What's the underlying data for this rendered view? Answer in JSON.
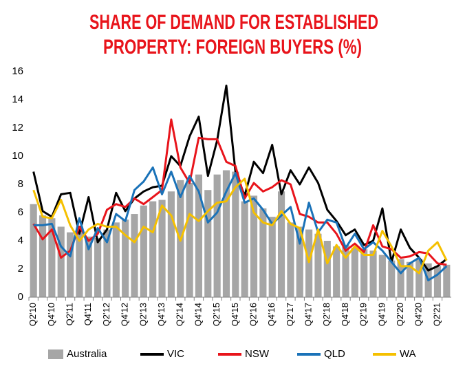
{
  "chart_data": {
    "type": "line",
    "title": [
      "SHARE OF DEMAND FOR ESTABLISHED",
      "PROPERTY: FOREIGN BUYERS (%)"
    ],
    "categories": [
      "Q2'10",
      null,
      "Q4'10",
      null,
      "Q2'11",
      null,
      "Q4'11",
      null,
      "Q2'12",
      null,
      "Q4'12",
      null,
      "Q2'13",
      null,
      "Q4'13",
      null,
      "Q2'14",
      null,
      "Q4'14",
      null,
      "Q2'15",
      null,
      "Q4'15",
      null,
      "Q2'16",
      null,
      "Q4'16",
      null,
      "Q2'17",
      null,
      "Q4'17",
      null,
      "Q2'18",
      null,
      "Q4'18",
      null,
      "Q2'19",
      null,
      "Q4'19",
      null,
      "Q2'20",
      null,
      "Q4'20",
      null,
      "Q2'21",
      null
    ],
    "series": [
      {
        "name": "Australia",
        "type": "bar",
        "color": "#a6a6a6",
        "values": [
          6.6,
          5.8,
          5.6,
          5.0,
          4.6,
          4.7,
          4.3,
          4.2,
          4.8,
          5.3,
          5.5,
          5.9,
          6.5,
          6.8,
          6.9,
          7.5,
          8.3,
          8.1,
          8.7,
          7.6,
          8.7,
          9.0,
          8.9,
          6.8,
          7.2,
          6.3,
          5.7,
          7.5,
          5.3,
          5.0,
          4.8,
          4.5,
          4.0,
          3.6,
          3.7,
          3.5,
          3.4,
          3.3,
          3.0,
          2.6,
          2.7,
          2.5,
          2.7,
          2.4,
          2.2,
          2.3
        ]
      },
      {
        "name": "VIC",
        "type": "line",
        "color": "#000000",
        "values": [
          8.9,
          6.1,
          5.7,
          7.3,
          7.4,
          4.5,
          7.1,
          3.9,
          4.8,
          7.4,
          6.1,
          7.0,
          7.5,
          7.8,
          7.9,
          10.0,
          9.3,
          11.4,
          12.8,
          8.6,
          11.1,
          15.0,
          8.9,
          7.2,
          9.6,
          8.8,
          10.8,
          7.3,
          9.0,
          8.0,
          9.2,
          8.1,
          6.2,
          5.4,
          4.4,
          4.8,
          3.7,
          4.0,
          6.3,
          2.5,
          4.8,
          3.5,
          2.8,
          1.9,
          2.2,
          2.7
        ]
      },
      {
        "name": "NSW",
        "type": "line",
        "color": "#e8141b",
        "values": [
          5.2,
          4.1,
          4.8,
          2.8,
          3.3,
          5.0,
          4.0,
          4.5,
          6.2,
          6.6,
          6.4,
          7.0,
          6.6,
          7.1,
          7.6,
          12.6,
          9.2,
          8.1,
          11.3,
          11.2,
          11.2,
          9.6,
          9.3,
          7.0,
          8.1,
          7.5,
          7.8,
          8.3,
          8.0,
          5.9,
          5.7,
          5.3,
          5.3,
          4.5,
          3.3,
          3.8,
          3.2,
          5.1,
          3.6,
          3.4,
          2.8,
          2.9,
          3.2,
          3.1,
          2.4,
          2.3
        ]
      },
      {
        "name": "QLD",
        "type": "line",
        "color": "#1a72b8",
        "values": [
          5.1,
          5.1,
          5.2,
          3.6,
          2.9,
          5.6,
          3.4,
          4.9,
          3.9,
          5.9,
          5.4,
          7.6,
          8.2,
          9.2,
          7.3,
          8.9,
          7.1,
          8.6,
          7.5,
          5.3,
          6.0,
          7.5,
          8.8,
          6.7,
          7.0,
          6.2,
          5.2,
          5.8,
          6.4,
          3.8,
          6.7,
          4.6,
          5.5,
          5.3,
          3.5,
          4.5,
          3.4,
          3.9,
          3.3,
          2.5,
          1.7,
          2.4,
          2.8,
          1.2,
          1.6,
          2.2
        ]
      },
      {
        "name": "WA",
        "type": "line",
        "color": "#f5c000",
        "values": [
          7.6,
          5.7,
          5.6,
          6.9,
          5.1,
          4.0,
          4.8,
          5.2,
          5.0,
          5.0,
          4.4,
          3.9,
          5.0,
          4.6,
          6.5,
          5.8,
          4.0,
          5.9,
          5.4,
          6.1,
          6.7,
          6.8,
          7.8,
          8.4,
          6.0,
          5.3,
          5.1,
          6.1,
          5.2,
          4.9,
          2.5,
          4.8,
          2.4,
          3.7,
          2.8,
          3.6,
          3.0,
          3.0,
          4.7,
          3.6,
          2.2,
          2.2,
          1.7,
          3.3,
          3.9,
          2.6
        ]
      }
    ],
    "ylim": [
      0,
      16
    ],
    "yticks": [
      0,
      2,
      4,
      6,
      8,
      10,
      12,
      14,
      16
    ],
    "grid": false,
    "legend": "bottom"
  }
}
